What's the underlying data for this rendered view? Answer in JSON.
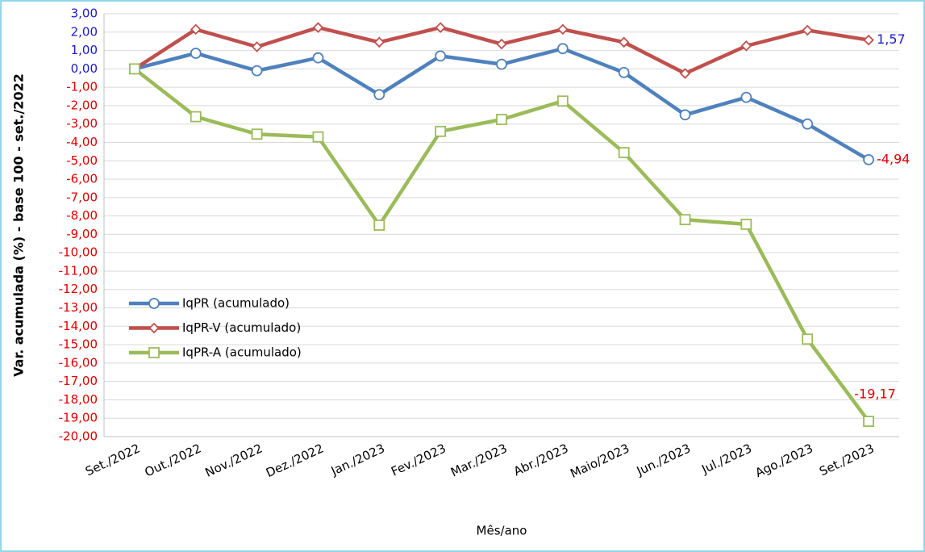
{
  "chart_data": {
    "type": "line",
    "y_label": "Var. acumulada (%) - base 100 - set./2022",
    "x_label": "Mês/ano",
    "categories": [
      "Set./2022",
      "Out./2022",
      "Nov./2022",
      "Dez./2022",
      "Jan./2023",
      "Fev./2023",
      "Mar./2023",
      "Abr./2023",
      "Maio/2023",
      "Jun./2023",
      "Jul./2023",
      "Ago./2023",
      "Set./2023"
    ],
    "series": [
      {
        "name": "IqPR (acumulado)",
        "color": "#4f81bd",
        "marker": "circle",
        "values": [
          0,
          0.85,
          -0.1,
          0.6,
          -1.4,
          0.7,
          0.25,
          1.1,
          -0.2,
          -2.5,
          -1.55,
          -3.0,
          -4.94
        ],
        "value_labels": [
          null,
          null,
          null,
          null,
          null,
          null,
          null,
          null,
          null,
          null,
          null,
          null,
          "-4,94"
        ]
      },
      {
        "name": "IqPR-V  (acumulado)",
        "color": "#c0504d",
        "marker": "diamond",
        "values": [
          0,
          2.15,
          1.2,
          2.25,
          1.45,
          2.25,
          1.35,
          2.15,
          1.45,
          -0.25,
          1.25,
          2.1,
          1.57
        ],
        "value_labels": [
          null,
          null,
          null,
          null,
          null,
          null,
          null,
          null,
          null,
          null,
          null,
          null,
          "1,57"
        ]
      },
      {
        "name": "IqPR-A  (acumulado)",
        "color": "#9bbb59",
        "marker": "square",
        "values": [
          0,
          -2.6,
          -3.55,
          -3.7,
          -8.5,
          -3.4,
          -2.75,
          -1.75,
          -4.55,
          -8.2,
          -8.45,
          -14.7,
          -19.17
        ],
        "value_labels": [
          null,
          null,
          null,
          null,
          null,
          null,
          null,
          null,
          null,
          null,
          null,
          null,
          "-19,17"
        ]
      }
    ],
    "ylim": [
      -20,
      3
    ],
    "yticks": [
      {
        "value": 3,
        "label": "3,00"
      },
      {
        "value": 2,
        "label": "2,00"
      },
      {
        "value": 1,
        "label": "1,00"
      },
      {
        "value": 0,
        "label": "0,00"
      },
      {
        "value": -1,
        "label": "-1,00"
      },
      {
        "value": -2,
        "label": "-2,00"
      },
      {
        "value": -3,
        "label": "-3,00"
      },
      {
        "value": -4,
        "label": "-4,00"
      },
      {
        "value": -5,
        "label": "-5,00"
      },
      {
        "value": -6,
        "label": "-6,00"
      },
      {
        "value": -7,
        "label": "-7,00"
      },
      {
        "value": -8,
        "label": "-8,00"
      },
      {
        "value": -9,
        "label": "-9,00"
      },
      {
        "value": -10,
        "label": "-10,00"
      },
      {
        "value": -11,
        "label": "-11,00"
      },
      {
        "value": -12,
        "label": "-12,00"
      },
      {
        "value": -13,
        "label": "-13,00"
      },
      {
        "value": -14,
        "label": "-14,00"
      },
      {
        "value": -15,
        "label": "-15,00"
      },
      {
        "value": -16,
        "label": "-16,00"
      },
      {
        "value": -17,
        "label": "-17,00"
      },
      {
        "value": -18,
        "label": "-18,00"
      },
      {
        "value": -19,
        "label": "-19,00"
      },
      {
        "value": -20,
        "label": "-20,00"
      }
    ],
    "grid": true
  }
}
